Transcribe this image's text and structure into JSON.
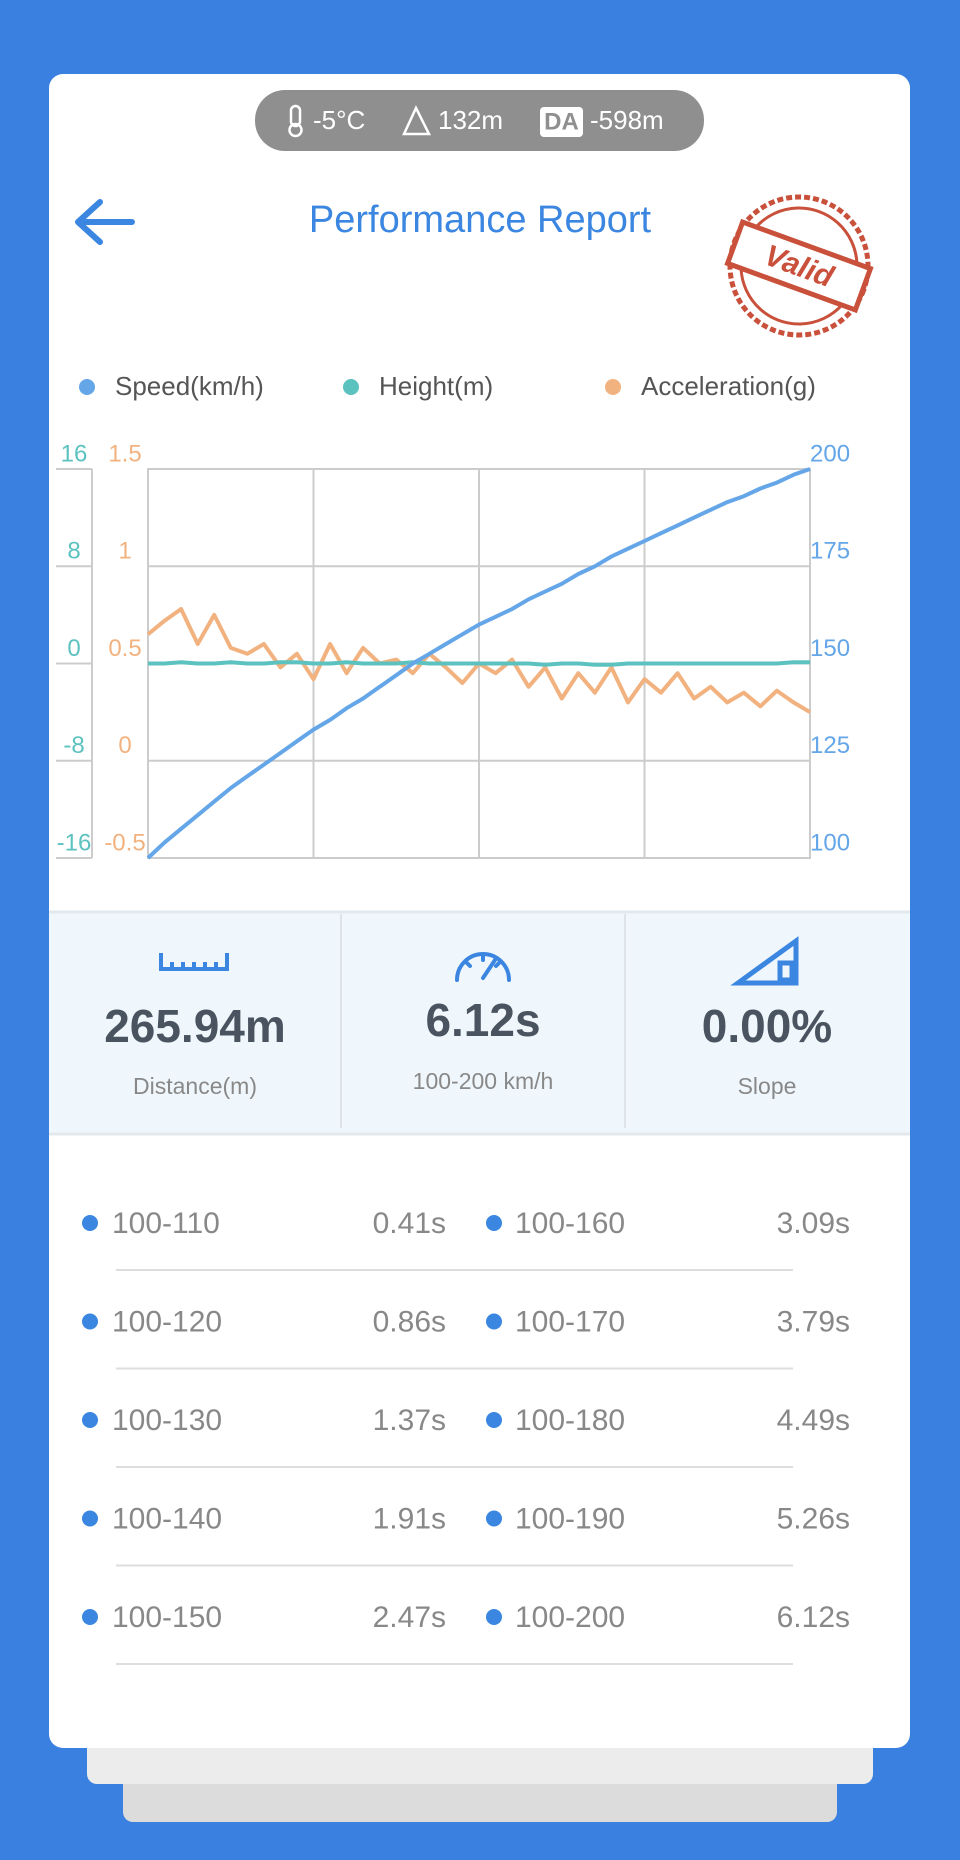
{
  "header": {
    "temperature": "-5°C",
    "altitude": "132m",
    "da_label": "DA",
    "density_altitude": "-598m",
    "title": "Performance Report",
    "stamp": "Valid"
  },
  "chart_data": {
    "type": "line",
    "categories": [
      null,
      null,
      null,
      null,
      null,
      null,
      null,
      null,
      null,
      null,
      null,
      null,
      null,
      null,
      null,
      null,
      null,
      null,
      null,
      null,
      null,
      null,
      null,
      null,
      null,
      null,
      null,
      null,
      null,
      null,
      null,
      null,
      null,
      null,
      null,
      null,
      null,
      null,
      null,
      null,
      null
    ],
    "series": [
      {
        "name": "Speed(km/h)",
        "color": "#64a6e8",
        "axis": "y2",
        "values": [
          100,
          104,
          107.5,
          111,
          114.5,
          118,
          121,
          124,
          127,
          130,
          133,
          135.5,
          138.5,
          141,
          144,
          147,
          150,
          152.5,
          155,
          157.5,
          160,
          162,
          164,
          166.5,
          168.5,
          170.5,
          173,
          175,
          177.5,
          179.5,
          181.5,
          183.5,
          185.5,
          187.5,
          189.5,
          191.5,
          193,
          195,
          196.5,
          198.5,
          200
        ]
      },
      {
        "name": "Height(m)",
        "color": "#5cc2bf",
        "axis": "y",
        "values": [
          0,
          0,
          0.1,
          0,
          0,
          0.1,
          0,
          0,
          0.1,
          0.1,
          0,
          0,
          0.1,
          0,
          0,
          0,
          0.1,
          0,
          0,
          0,
          0,
          0,
          0,
          0,
          -0.1,
          0,
          0,
          -0.1,
          -0.1,
          0,
          0,
          0,
          0,
          0,
          0,
          0,
          0,
          0,
          0,
          0.1,
          0.1
        ]
      },
      {
        "name": "Acceleration(g)",
        "color": "#f2b27f",
        "axis": "y3",
        "values": [
          0.65,
          0.72,
          0.78,
          0.6,
          0.75,
          0.58,
          0.55,
          0.6,
          0.48,
          0.55,
          0.42,
          0.6,
          0.45,
          0.58,
          0.5,
          0.52,
          0.45,
          0.55,
          0.48,
          0.4,
          0.5,
          0.45,
          0.52,
          0.38,
          0.48,
          0.32,
          0.45,
          0.35,
          0.48,
          0.3,
          0.42,
          0.35,
          0.45,
          0.32,
          0.38,
          0.3,
          0.35,
          0.28,
          0.36,
          0.3,
          0.25
        ]
      }
    ],
    "ylim": [
      -16,
      16
    ],
    "yticks": [
      -16,
      -8,
      0,
      8,
      16
    ],
    "y3lim": [
      -0.5,
      1.5
    ],
    "y3ticks": [
      -0.5,
      0,
      0.5,
      1,
      1.5
    ],
    "y2lim": [
      100,
      200
    ],
    "y2ticks": [
      100,
      125,
      150,
      175,
      200
    ],
    "grid": true
  },
  "stats": [
    {
      "value": "265.94m",
      "label": "Distance(m)"
    },
    {
      "value": "6.12s",
      "label": "100-200 km/h"
    },
    {
      "value": "0.00%",
      "label": "Slope"
    }
  ],
  "splits": {
    "rows": [
      [
        "100-110",
        "0.41s",
        "100-160",
        "3.09s"
      ],
      [
        "100-120",
        "0.86s",
        "100-170",
        "3.79s"
      ],
      [
        "100-130",
        "1.37s",
        "100-180",
        "4.49s"
      ],
      [
        "100-140",
        "1.91s",
        "100-190",
        "5.26s"
      ],
      [
        "100-150",
        "2.47s",
        "100-200",
        "6.12s"
      ]
    ]
  }
}
